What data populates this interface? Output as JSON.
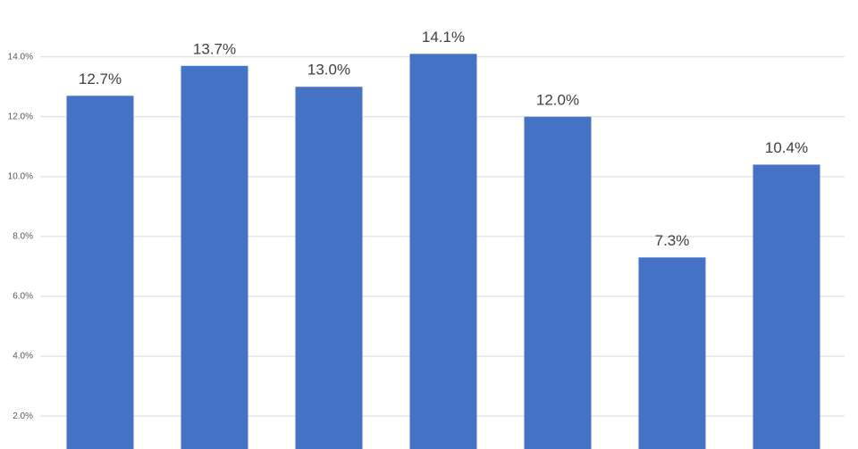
{
  "chart_data": {
    "type": "bar",
    "categories": [
      null,
      null,
      null,
      null,
      null,
      null,
      null
    ],
    "values": [
      12.7,
      13.7,
      13.0,
      14.1,
      12.0,
      7.3,
      10.4
    ],
    "value_labels": [
      "12.7%",
      "13.7%",
      "13.0%",
      "14.1%",
      "12.0%",
      "7.3%",
      "10.4%"
    ],
    "color": "#4472c4",
    "ylim": [
      0.9,
      15.9
    ],
    "yticks": [
      {
        "value": 2,
        "label": "2.0%"
      },
      {
        "value": 4,
        "label": "4.0%"
      },
      {
        "value": 6,
        "label": "6.0%"
      },
      {
        "value": 8,
        "label": "8.0%"
      },
      {
        "value": 10,
        "label": "10.0%"
      },
      {
        "value": 12,
        "label": "12.0%"
      },
      {
        "value": 14,
        "label": "14.0%"
      }
    ],
    "grid": true
  }
}
